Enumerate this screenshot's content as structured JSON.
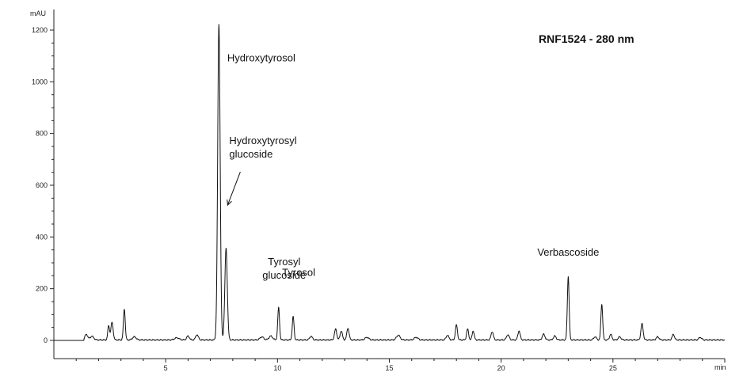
{
  "chart_data": {
    "type": "line",
    "title": "RNF1524  -  280 nm",
    "y_unit": "mAU",
    "x_unit": "min",
    "xlim": [
      0,
      30
    ],
    "ylim": [
      -40,
      1240
    ],
    "x_ticks": [
      5,
      10,
      15,
      20,
      25
    ],
    "y_ticks": [
      0,
      200,
      400,
      600,
      800,
      1000,
      1200
    ],
    "grid": false,
    "annotations": [
      {
        "text": [
          "Hydroxytyrosol"
        ],
        "x": 7.4,
        "y": 1210
      },
      {
        "text": [
          "Hydroxytyrosyl",
          "glucoside"
        ],
        "x": 7.7,
        "y": 355,
        "arrow": true
      },
      {
        "text": [
          "Tyrosyl",
          "glucoside"
        ],
        "x": 10.05,
        "y": 125
      },
      {
        "text": [
          "Tyrosol"
        ],
        "x": 10.7,
        "y": 90
      },
      {
        "text": [
          "Verbascoside"
        ],
        "x": 23.0,
        "y": 245
      }
    ],
    "baseline": 2,
    "peaks": [
      {
        "rt": 1.45,
        "h": 22,
        "w": 0.06
      },
      {
        "rt": 1.7,
        "h": 14,
        "w": 0.08
      },
      {
        "rt": 2.45,
        "h": 55,
        "w": 0.04
      },
      {
        "rt": 2.6,
        "h": 68,
        "w": 0.05
      },
      {
        "rt": 3.15,
        "h": 120,
        "w": 0.04
      },
      {
        "rt": 3.6,
        "h": 12,
        "w": 0.08
      },
      {
        "rt": 5.5,
        "h": 8,
        "w": 0.1
      },
      {
        "rt": 6.0,
        "h": 15,
        "w": 0.06
      },
      {
        "rt": 6.4,
        "h": 20,
        "w": 0.06
      },
      {
        "rt": 7.38,
        "h": 1220,
        "w": 0.055
      },
      {
        "rt": 7.7,
        "h": 355,
        "w": 0.055
      },
      {
        "rt": 9.3,
        "h": 12,
        "w": 0.08
      },
      {
        "rt": 9.7,
        "h": 15,
        "w": 0.08
      },
      {
        "rt": 10.05,
        "h": 125,
        "w": 0.04
      },
      {
        "rt": 10.7,
        "h": 90,
        "w": 0.04
      },
      {
        "rt": 11.5,
        "h": 14,
        "w": 0.06
      },
      {
        "rt": 12.6,
        "h": 42,
        "w": 0.05
      },
      {
        "rt": 12.85,
        "h": 35,
        "w": 0.05
      },
      {
        "rt": 13.15,
        "h": 45,
        "w": 0.05
      },
      {
        "rt": 14.0,
        "h": 10,
        "w": 0.08
      },
      {
        "rt": 15.4,
        "h": 18,
        "w": 0.08
      },
      {
        "rt": 16.2,
        "h": 10,
        "w": 0.08
      },
      {
        "rt": 17.6,
        "h": 18,
        "w": 0.06
      },
      {
        "rt": 18.0,
        "h": 58,
        "w": 0.045
      },
      {
        "rt": 18.5,
        "h": 42,
        "w": 0.045
      },
      {
        "rt": 18.75,
        "h": 35,
        "w": 0.045
      },
      {
        "rt": 19.6,
        "h": 32,
        "w": 0.05
      },
      {
        "rt": 20.3,
        "h": 20,
        "w": 0.06
      },
      {
        "rt": 20.8,
        "h": 35,
        "w": 0.05
      },
      {
        "rt": 21.9,
        "h": 22,
        "w": 0.06
      },
      {
        "rt": 22.4,
        "h": 15,
        "w": 0.06
      },
      {
        "rt": 23.0,
        "h": 245,
        "w": 0.04
      },
      {
        "rt": 24.2,
        "h": 12,
        "w": 0.06
      },
      {
        "rt": 24.5,
        "h": 138,
        "w": 0.04
      },
      {
        "rt": 24.9,
        "h": 22,
        "w": 0.05
      },
      {
        "rt": 25.3,
        "h": 12,
        "w": 0.06
      },
      {
        "rt": 26.3,
        "h": 62,
        "w": 0.05
      },
      {
        "rt": 27.0,
        "h": 12,
        "w": 0.06
      },
      {
        "rt": 27.7,
        "h": 22,
        "w": 0.05
      },
      {
        "rt": 28.9,
        "h": 10,
        "w": 0.06
      }
    ]
  }
}
